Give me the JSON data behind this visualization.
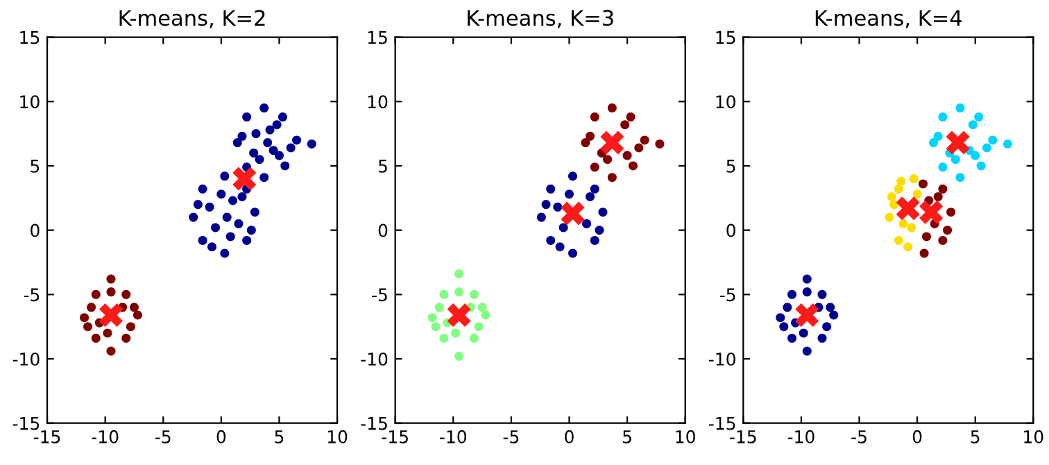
{
  "chart_data": [
    {
      "type": "scatter",
      "title": "K-means, K=2",
      "xlim": [
        -15,
        10
      ],
      "ylim": [
        -15,
        15
      ],
      "xticks": [
        -15,
        -10,
        -5,
        0,
        5,
        10
      ],
      "yticks": [
        -15,
        -10,
        -5,
        0,
        5,
        10,
        15
      ],
      "grid": false,
      "series": [
        {
          "color": "#00008f",
          "marker": "circle",
          "x": [
            -2.4,
            2.9,
            0.3,
            0.3,
            -1.6,
            2.2,
            -1.6,
            2.2,
            -1.0,
            1.5,
            -0.5,
            1.0,
            0.0,
            0.8,
            -2.0,
            2.6,
            -0.8,
            1.8,
            0.5,
            1.4,
            7.8,
            3.7,
            3.7,
            2.2,
            5.3,
            2.2,
            5.5,
            3.0,
            4.5,
            6.5,
            2.8,
            4.2,
            3.3,
            4.8,
            6.0,
            1.8,
            4.0,
            5.0
          ],
          "values": [
            1.0,
            1.4,
            4.2,
            -1.8,
            3.2,
            3.2,
            -0.8,
            -0.8,
            1.8,
            0.5,
            0.2,
            2.3,
            2.8,
            -0.5,
            2.0,
            0.0,
            -1.3,
            2.6,
            1.0,
            6.8,
            6.7,
            9.5,
            4.1,
            8.8,
            8.8,
            4.9,
            5.0,
            7.5,
            6.2,
            7.0,
            6.0,
            7.8,
            5.5,
            8.2,
            6.4,
            7.3,
            6.8,
            5.8
          ]
        },
        {
          "color": "#800000",
          "marker": "circle",
          "x": [
            -11.8,
            -7.2,
            -9.5,
            -9.5,
            -10.8,
            -8.2,
            -10.8,
            -8.2,
            -11.2,
            -7.8,
            -10.5,
            -8.5,
            -9.8,
            -11.5,
            -7.5,
            -9.5
          ],
          "values": [
            -6.8,
            -6.6,
            -3.8,
            -9.4,
            -5.0,
            -5.0,
            -8.4,
            -8.4,
            -6.0,
            -7.5,
            -7.2,
            -6.0,
            -8.0,
            -7.5,
            -6.0,
            -4.8
          ]
        },
        {
          "color": "#ff1a1a",
          "marker": "cross",
          "x": [
            2.0,
            -9.5
          ],
          "values": [
            4.0,
            -6.6
          ]
        }
      ]
    },
    {
      "type": "scatter",
      "title": "K-means, K=3",
      "xlim": [
        -15,
        10
      ],
      "ylim": [
        -15,
        15
      ],
      "xticks": [
        -15,
        -10,
        -5,
        0,
        5,
        10
      ],
      "yticks": [
        -15,
        -10,
        -5,
        0,
        5,
        10,
        15
      ],
      "grid": false,
      "series": [
        {
          "color": "#00008f",
          "marker": "circle",
          "x": [
            -2.4,
            2.9,
            0.3,
            0.3,
            -1.6,
            2.2,
            -1.6,
            2.2,
            -1.0,
            1.5,
            -0.5,
            0.0,
            -2.0,
            2.6,
            -0.8,
            1.8
          ],
          "values": [
            1.0,
            1.4,
            4.2,
            -1.8,
            3.2,
            3.2,
            -0.8,
            -0.8,
            1.8,
            0.5,
            0.2,
            2.8,
            2.0,
            0.0,
            -1.3,
            2.6
          ]
        },
        {
          "color": "#800000",
          "marker": "circle",
          "x": [
            1.4,
            7.8,
            3.7,
            3.7,
            2.2,
            5.3,
            2.2,
            5.5,
            6.5,
            2.8,
            3.3,
            4.8,
            6.0,
            1.8,
            5.0
          ],
          "values": [
            6.8,
            6.7,
            9.5,
            4.1,
            8.8,
            8.8,
            4.9,
            5.0,
            7.0,
            6.0,
            5.5,
            8.2,
            6.4,
            7.3,
            5.8
          ]
        },
        {
          "color": "#80ff80",
          "marker": "circle",
          "x": [
            -11.8,
            -7.2,
            -9.5,
            -9.5,
            -10.8,
            -8.2,
            -10.8,
            -8.2,
            -11.2,
            -7.8,
            -10.5,
            -8.5,
            -9.8,
            -11.5,
            -7.5,
            -9.5
          ],
          "values": [
            -6.8,
            -6.6,
            -3.4,
            -9.8,
            -5.0,
            -5.0,
            -8.4,
            -8.4,
            -6.0,
            -7.5,
            -7.2,
            -6.0,
            -8.0,
            -7.5,
            -6.0,
            -4.8
          ]
        },
        {
          "color": "#ff1a1a",
          "marker": "cross",
          "x": [
            -9.5,
            0.3,
            3.7
          ],
          "values": [
            -6.6,
            1.3,
            6.8
          ]
        }
      ]
    },
    {
      "type": "scatter",
      "title": "K-means, K=4",
      "xlim": [
        -15,
        10
      ],
      "ylim": [
        -15,
        15
      ],
      "xticks": [
        -15,
        -10,
        -5,
        0,
        5,
        10
      ],
      "yticks": [
        -15,
        -10,
        -5,
        0,
        5,
        10,
        15
      ],
      "grid": false,
      "series": [
        {
          "color": "#00008f",
          "marker": "circle",
          "x": [
            -11.8,
            -7.2,
            -9.5,
            -9.5,
            -10.8,
            -8.2,
            -10.8,
            -8.2,
            -11.2,
            -7.8,
            -10.5,
            -8.5,
            -9.8,
            -11.5,
            -7.5,
            -9.5
          ],
          "values": [
            -6.8,
            -6.6,
            -3.8,
            -9.4,
            -5.0,
            -5.0,
            -8.4,
            -8.4,
            -6.0,
            -7.5,
            -7.2,
            -6.0,
            -8.0,
            -7.5,
            -6.0,
            -4.8
          ]
        },
        {
          "color": "#ffdd00",
          "marker": "circle",
          "x": [
            -2.4,
            -1.6,
            -1.6,
            -0.5,
            0.0,
            -2.0,
            -0.8,
            -1.2,
            -0.3,
            -2.2,
            -1.4
          ],
          "values": [
            1.0,
            3.2,
            -0.8,
            0.2,
            2.8,
            2.0,
            -1.3,
            0.5,
            4.0,
            2.6,
            3.8
          ]
        },
        {
          "color": "#800000",
          "marker": "circle",
          "x": [
            2.9,
            0.5,
            0.6,
            2.2,
            2.2,
            1.5,
            1.0,
            0.8,
            2.6,
            1.8
          ],
          "values": [
            1.4,
            3.6,
            -1.8,
            3.2,
            -0.8,
            0.5,
            2.3,
            -0.5,
            0.0,
            2.6
          ]
        },
        {
          "color": "#00d4ff",
          "marker": "circle",
          "x": [
            1.4,
            7.8,
            3.7,
            3.7,
            2.2,
            5.3,
            2.2,
            5.5,
            4.5,
            6.5,
            2.8,
            3.3,
            4.8,
            6.0,
            1.8,
            5.0
          ],
          "values": [
            6.8,
            6.7,
            9.5,
            4.1,
            8.8,
            8.8,
            4.9,
            5.0,
            6.2,
            7.0,
            6.0,
            5.5,
            8.2,
            6.4,
            7.3,
            5.8
          ]
        },
        {
          "color": "#ff1a1a",
          "marker": "cross",
          "x": [
            -9.5,
            -0.8,
            1.2,
            3.5
          ],
          "values": [
            -6.6,
            1.7,
            1.4,
            6.8
          ]
        }
      ]
    }
  ]
}
